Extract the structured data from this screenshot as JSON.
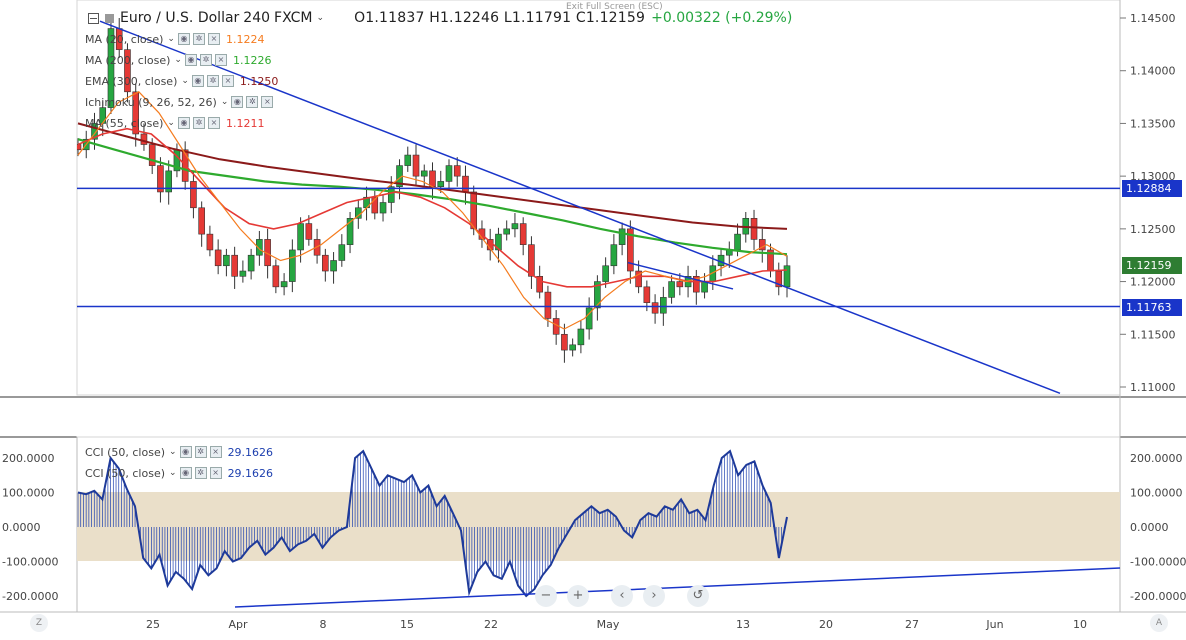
{
  "header": {
    "symbol": "Euro / U.S. Dollar",
    "interval": "240",
    "source": "FXCM",
    "ohlc": "O1.11837  H1.12246  L1.11791  C1.12159",
    "change": "+0.00322 (+0.29%)",
    "exit_fullscreen": "Exit Full Screen (ESC)"
  },
  "indicators": [
    {
      "label": "MA (20, close)",
      "value": "1.1224",
      "color": "#f57c1f"
    },
    {
      "label": "MA (200, close)",
      "value": "1.1226",
      "color": "#2eaa2e"
    },
    {
      "label": "EMA (300, close)",
      "value": "1.1250",
      "color": "#8b1a1a"
    },
    {
      "label": "Ichimoku (9, 26, 52, 26)",
      "value": "",
      "color": "#3b82f6"
    },
    {
      "label": "MA (55, close)",
      "value": "1.1211",
      "color": "#e53935"
    }
  ],
  "cci_indicators": [
    {
      "label": "CCI (50, close)",
      "value": "29.1626",
      "color": "#1e40af"
    },
    {
      "label": "CCI (50, close)",
      "value": "29.1626",
      "color": "#1e40af"
    }
  ],
  "price_tags": [
    {
      "value": "1.12884",
      "color": "#1a35c9"
    },
    {
      "value": "1.12159",
      "color": "#2e7d32"
    },
    {
      "value": "1.11763",
      "color": "#1a35c9"
    }
  ],
  "time_labels": [
    "25",
    "Apr",
    "8",
    "15",
    "22",
    "May",
    "13",
    "20",
    "27",
    "Jun",
    "10"
  ],
  "corner_left": "Z",
  "corner_right": "A",
  "nav_icons": [
    "zoom-out",
    "zoom-in",
    "scroll-left",
    "scroll-right",
    "reset"
  ],
  "chart_data": [
    {
      "type": "candlestick",
      "title": "Euro / U.S. Dollar, 240, FXCM",
      "ylim": [
        1.1085,
        1.1465
      ],
      "yticks": [
        "1.14500",
        "1.14000",
        "1.13500",
        "1.13000",
        "1.12500",
        "1.12000",
        "1.11500",
        "1.11000"
      ],
      "horizontal_levels": [
        1.12884,
        1.11763
      ],
      "last_price": 1.12159,
      "approx_closes": [
        1.1325,
        1.1335,
        1.135,
        1.1365,
        1.144,
        1.142,
        1.138,
        1.134,
        1.133,
        1.131,
        1.1285,
        1.1305,
        1.1325,
        1.1295,
        1.127,
        1.1245,
        1.123,
        1.1215,
        1.1225,
        1.1205,
        1.121,
        1.1225,
        1.124,
        1.1215,
        1.1195,
        1.12,
        1.123,
        1.1255,
        1.124,
        1.1225,
        1.121,
        1.122,
        1.1235,
        1.126,
        1.127,
        1.128,
        1.1265,
        1.1275,
        1.129,
        1.131,
        1.132,
        1.13,
        1.1305,
        1.129,
        1.1295,
        1.131,
        1.13,
        1.1285,
        1.125,
        1.124,
        1.123,
        1.1245,
        1.125,
        1.1255,
        1.1235,
        1.1205,
        1.119,
        1.1165,
        1.115,
        1.1135,
        1.114,
        1.1155,
        1.1175,
        1.12,
        1.1215,
        1.1235,
        1.125,
        1.121,
        1.1195,
        1.118,
        1.117,
        1.1185,
        1.12,
        1.1195,
        1.1205,
        1.119,
        1.12,
        1.1215,
        1.1225,
        1.123,
        1.1245,
        1.126,
        1.124,
        1.123,
        1.121,
        1.1195,
        1.1215
      ],
      "ma20": [
        1.132,
        1.1345,
        1.137,
        1.138,
        1.136,
        1.133,
        1.13,
        1.1275,
        1.125,
        1.123,
        1.122,
        1.1225,
        1.1235,
        1.125,
        1.1265,
        1.1285,
        1.13,
        1.1295,
        1.1285,
        1.1265,
        1.124,
        1.1215,
        1.1185,
        1.1165,
        1.1155,
        1.1165,
        1.1185,
        1.12,
        1.121,
        1.1205,
        1.12,
        1.1205,
        1.1215,
        1.1225,
        1.1235,
        1.1224
      ],
      "ma55": [
        1.133,
        1.134,
        1.1345,
        1.134,
        1.132,
        1.1295,
        1.127,
        1.1255,
        1.125,
        1.1255,
        1.1265,
        1.1275,
        1.128,
        1.1285,
        1.128,
        1.127,
        1.1255,
        1.1235,
        1.1215,
        1.12,
        1.1195,
        1.1195,
        1.12,
        1.1205,
        1.1205,
        1.12,
        1.12,
        1.1205,
        1.121,
        1.1211
      ],
      "ma200": [
        1.1335,
        1.1325,
        1.1315,
        1.1305,
        1.13,
        1.1295,
        1.1292,
        1.129,
        1.1287,
        1.1283,
        1.1278,
        1.1272,
        1.1265,
        1.1258,
        1.125,
        1.1243,
        1.1237,
        1.1232,
        1.1228,
        1.1226
      ],
      "ema300": [
        1.135,
        1.1338,
        1.1326,
        1.1316,
        1.1309,
        1.1303,
        1.1297,
        1.1292,
        1.1286,
        1.128,
        1.1274,
        1.1268,
        1.1262,
        1.1256,
        1.1252,
        1.125
      ]
    },
    {
      "type": "line",
      "title": "CCI (50, close)",
      "ylim": [
        -230,
        240
      ],
      "yticks": [
        "200.0000",
        "100.0000",
        "0.0000",
        "-100.0000",
        "-200.0000"
      ],
      "band": [
        -100,
        100
      ],
      "last_value": 29.1626,
      "approx_values": [
        100,
        95,
        105,
        80,
        200,
        170,
        110,
        60,
        -90,
        -120,
        -80,
        -170,
        -130,
        -150,
        -180,
        -110,
        -140,
        -120,
        -70,
        -100,
        -90,
        -60,
        -40,
        -80,
        -60,
        -30,
        -70,
        -50,
        -40,
        -20,
        -60,
        -30,
        -10,
        0,
        200,
        220,
        170,
        120,
        150,
        140,
        130,
        150,
        100,
        120,
        60,
        90,
        40,
        -10,
        -190,
        -130,
        -100,
        -140,
        -150,
        -100,
        -170,
        -200,
        -180,
        -140,
        -110,
        -60,
        -20,
        20,
        40,
        60,
        40,
        50,
        30,
        -10,
        -30,
        20,
        40,
        30,
        60,
        50,
        80,
        40,
        50,
        20,
        120,
        200,
        220,
        150,
        180,
        190,
        120,
        70,
        -90,
        29
      ]
    }
  ]
}
